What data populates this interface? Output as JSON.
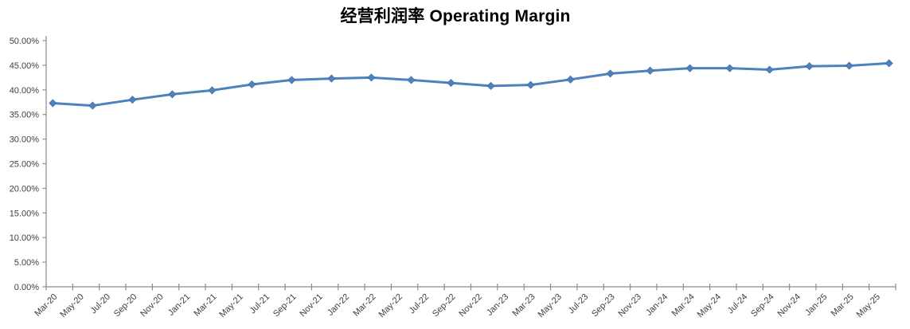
{
  "chart_data": {
    "type": "line",
    "title": "经营利润率 Operating Margin",
    "legend_position": "none",
    "grid": false,
    "background_color": "#ffffff",
    "line_color": "#4F81BD",
    "marker_shape": "diamond",
    "marker_color": "#4F81BD",
    "axis_color": "#8C8C8C",
    "tick_label_color": "#3F3F3F",
    "title_color": "#000000",
    "ylim": [
      0,
      50
    ],
    "ytick_step": 5,
    "y_tick_labels": [
      "0.00%",
      "5.00%",
      "10.00%",
      "15.00%",
      "20.00%",
      "25.00%",
      "30.00%",
      "35.00%",
      "40.00%",
      "45.00%",
      "50.00%"
    ],
    "x_axis_labels": [
      "Mar-20",
      "May-20",
      "Jul-20",
      "Sep-20",
      "Nov-20",
      "Jan-21",
      "Mar-21",
      "May-21",
      "Jul-21",
      "Sep-21",
      "Nov-21",
      "Jan-22",
      "Mar-22",
      "May-22",
      "Jul-22",
      "Sep-22",
      "Nov-22",
      "Jan-23",
      "Mar-23",
      "May-23",
      "Jul-23",
      "Sep-23",
      "Nov-23",
      "Jan-24",
      "Mar-24",
      "May-24",
      "Jul-24",
      "Sep-24",
      "Nov-24",
      "Jan-25",
      "Mar-25",
      "May-25"
    ],
    "x_axis_total_months": 64,
    "x_label_interval_months": 2,
    "series": [
      {
        "name": "经营利润率 Operating Margin",
        "x": [
          "Mar-20",
          "Jun-20",
          "Sep-20",
          "Dec-20",
          "Mar-21",
          "Jun-21",
          "Sep-21",
          "Dec-21",
          "Mar-22",
          "Jun-22",
          "Sep-22",
          "Dec-22",
          "Mar-23",
          "Jun-23",
          "Sep-23",
          "Dec-23",
          "Mar-24",
          "Jun-24",
          "Sep-24",
          "Dec-24",
          "Mar-25",
          "Jun-25"
        ],
        "month_offsets": [
          0,
          3,
          6,
          9,
          12,
          15,
          18,
          21,
          24,
          27,
          30,
          33,
          36,
          39,
          42,
          45,
          48,
          51,
          54,
          57,
          60,
          63
        ],
        "values": [
          37.3,
          36.8,
          38.0,
          39.1,
          39.9,
          41.1,
          42.0,
          42.3,
          42.5,
          42.0,
          41.4,
          40.8,
          41.0,
          42.1,
          43.3,
          43.9,
          44.4,
          44.4,
          44.1,
          44.8,
          44.9,
          45.4
        ]
      }
    ]
  }
}
